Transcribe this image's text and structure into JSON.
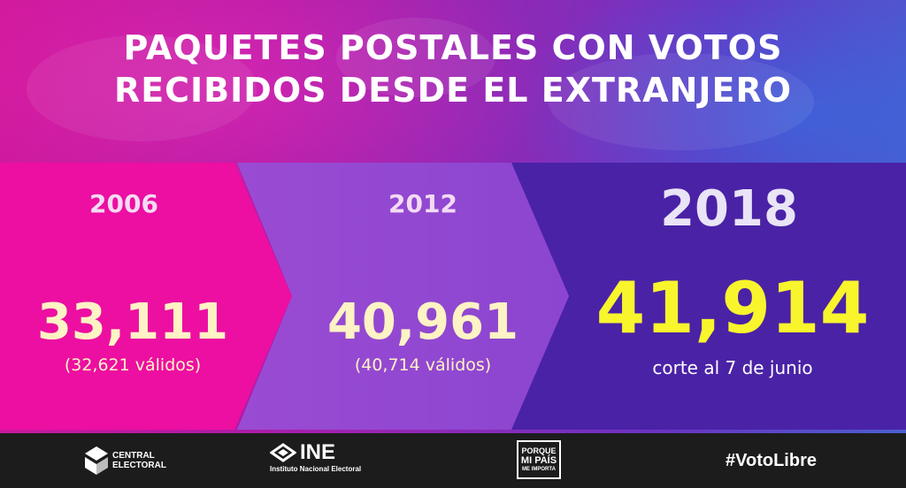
{
  "title": {
    "line1": "PAQUETES POSTALES CON VOTOS",
    "line2": "RECIBIDOS DESDE EL EXTRANJERO"
  },
  "panels": [
    {
      "year": "2006",
      "count": "33,111",
      "note": "(32,621 válidos)",
      "bg_color": "#ec0fa2",
      "count_color": "#fdf3c4",
      "note_color": "#fdf3c4"
    },
    {
      "year": "2012",
      "count": "40,961",
      "note": "(40,714 válidos)",
      "bg_color": "#8b45d0",
      "count_color": "#fdf3c4",
      "note_color": "#fdf3c4"
    },
    {
      "year": "2018",
      "count": "41,914",
      "note": "corte al 7 de junio",
      "bg_color": "#4a22a6",
      "count_color": "#f8f52c",
      "note_color": "#ffffff"
    }
  ],
  "footer": {
    "central_electoral": {
      "icon": "central-electoral-logo-icon",
      "line1": "CENTRAL",
      "line2": "ELECTORAL"
    },
    "ine": {
      "icon": "ine-logo-icon",
      "name": "INE",
      "subtitle": "Instituto Nacional Electoral"
    },
    "porque": {
      "line1": "PORQUE",
      "line2": "MI PAÍS",
      "line3": "ME IMPORTA"
    },
    "hashtag": "#VotoLibre"
  }
}
